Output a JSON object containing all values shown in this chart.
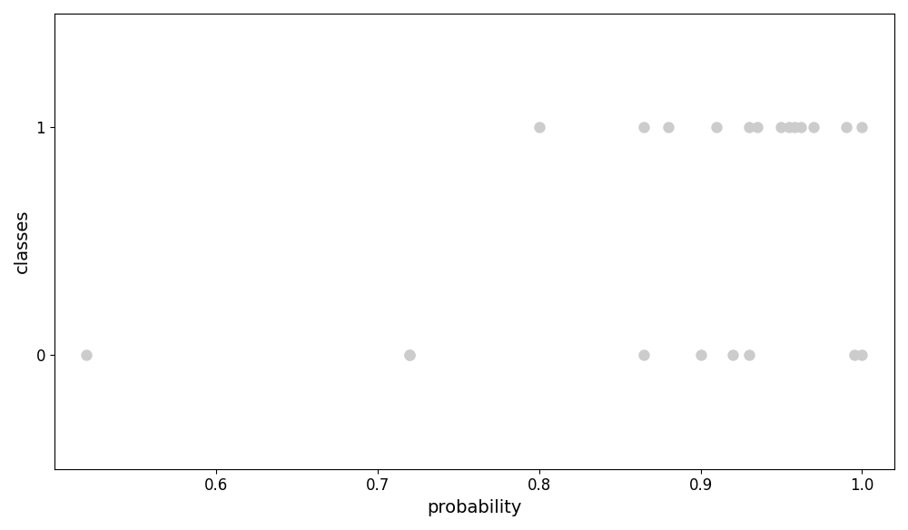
{
  "xlabel": "probability",
  "ylabel": "classes",
  "xlim": [
    0.5,
    1.02
  ],
  "ylim": [
    -0.5,
    1.5
  ],
  "xticks": [
    0.6,
    0.7,
    0.8,
    0.9,
    1.0
  ],
  "yticks": [
    0,
    1
  ],
  "dot_color": "#cccccc",
  "dot_size": 80,
  "dot_alpha": 1.0,
  "points": [
    [
      0.52,
      0
    ],
    [
      0.72,
      0
    ],
    [
      0.72,
      0
    ],
    [
      0.8,
      1
    ],
    [
      0.865,
      0
    ],
    [
      0.865,
      1
    ],
    [
      0.88,
      1
    ],
    [
      0.9,
      0
    ],
    [
      0.91,
      1
    ],
    [
      0.92,
      0
    ],
    [
      0.93,
      0
    ],
    [
      0.93,
      1
    ],
    [
      0.935,
      1
    ],
    [
      0.95,
      1
    ],
    [
      0.955,
      1
    ],
    [
      0.958,
      1
    ],
    [
      0.962,
      1
    ],
    [
      0.97,
      1
    ],
    [
      0.99,
      1
    ],
    [
      0.995,
      0
    ],
    [
      1.0,
      0
    ],
    [
      1.0,
      1
    ]
  ],
  "figsize": [
    10.0,
    5.84
  ],
  "dpi": 100,
  "fig_facecolor": "#ffffff",
  "xlabel_fontsize": 14,
  "ylabel_fontsize": 14,
  "tick_fontsize": 12
}
